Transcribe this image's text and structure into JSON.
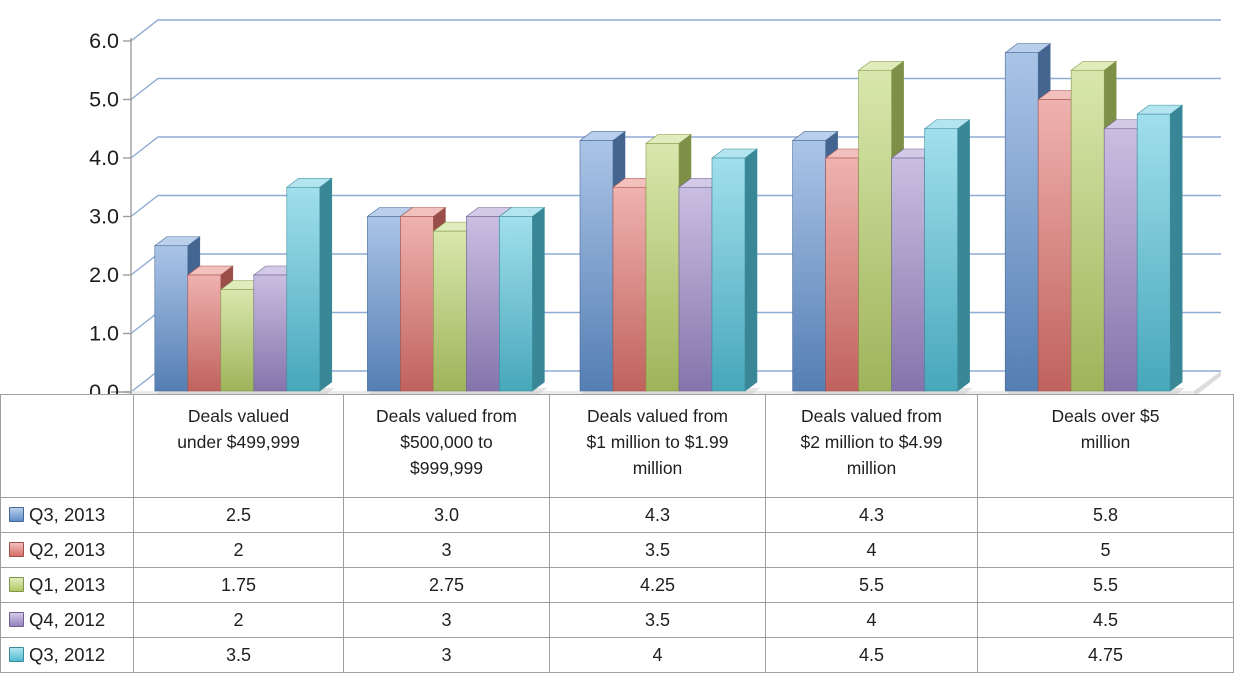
{
  "chart_data": {
    "type": "bar",
    "subtype": "3d-clustered-column",
    "title": "",
    "xlabel": "",
    "ylabel": "",
    "categories": [
      "Deals valued under $499,999",
      "Deals valued from $500,000 to $999,999",
      "Deals valued from $1 million to $1.99 million",
      "Deals valued from $2 million to $4.99 million",
      "Deals over $5 million"
    ],
    "series": [
      {
        "name": "Q3, 2013",
        "color": "#6494d3",
        "values": [
          2.5,
          3.0,
          4.3,
          4.3,
          5.8
        ]
      },
      {
        "name": "Q2, 2013",
        "color": "#e2736d",
        "values": [
          2,
          3,
          3.5,
          4,
          5
        ]
      },
      {
        "name": "Q1, 2013",
        "color": "#bad46a",
        "values": [
          1.75,
          2.75,
          4.25,
          5.5,
          5.5
        ]
      },
      {
        "name": "Q4, 2012",
        "color": "#9c89c9",
        "values": [
          2,
          3,
          3.5,
          4,
          4.5
        ]
      },
      {
        "name": "Q3, 2012",
        "color": "#54c5dc",
        "values": [
          3.5,
          3,
          4,
          4.5,
          4.75
        ]
      }
    ],
    "ylim": [
      0,
      6
    ],
    "ytick_step": 1,
    "ytick_labels": [
      "0.0",
      "1.0",
      "2.0",
      "3.0",
      "4.0",
      "5.0",
      "6.0"
    ],
    "grid": true,
    "legend_position": "data-table-row-labels"
  },
  "data_table": {
    "column_headers": [
      "Deals valued\nunder $499,999",
      "Deals valued from\n$500,000 to\n$999,999",
      "Deals valued from\n$1 million to $1.99\nmillion",
      "Deals valued from\n$2 million to $4.99\nmillion",
      "Deals over $5\nmillion"
    ],
    "rows": [
      {
        "label": "Q3, 2013",
        "cells": [
          "2.5",
          "3.0",
          "4.3",
          "4.3",
          "5.8"
        ]
      },
      {
        "label": "Q2, 2013",
        "cells": [
          "2",
          "3",
          "3.5",
          "4",
          "5"
        ]
      },
      {
        "label": "Q1, 2013",
        "cells": [
          "1.75",
          "2.75",
          "4.25",
          "5.5",
          "5.5"
        ]
      },
      {
        "label": "Q4, 2012",
        "cells": [
          "2",
          "3",
          "3.5",
          "4",
          "4.5"
        ]
      },
      {
        "label": "Q3, 2012",
        "cells": [
          "3.5",
          "3",
          "4",
          "4.5",
          "4.75"
        ]
      }
    ]
  },
  "colors": {
    "gridline": "#8eabd3",
    "axis": "#9c9c9c",
    "floor": "#ebebeb",
    "floor_side": "#dcdcdc",
    "floor_edge": "#c2c2c2",
    "shadow": "#cccccc",
    "table_border": "#a0a0a0",
    "table_outer_border": "#7f7f7f",
    "text": "#1f1f1f",
    "background": "#ffffff"
  }
}
